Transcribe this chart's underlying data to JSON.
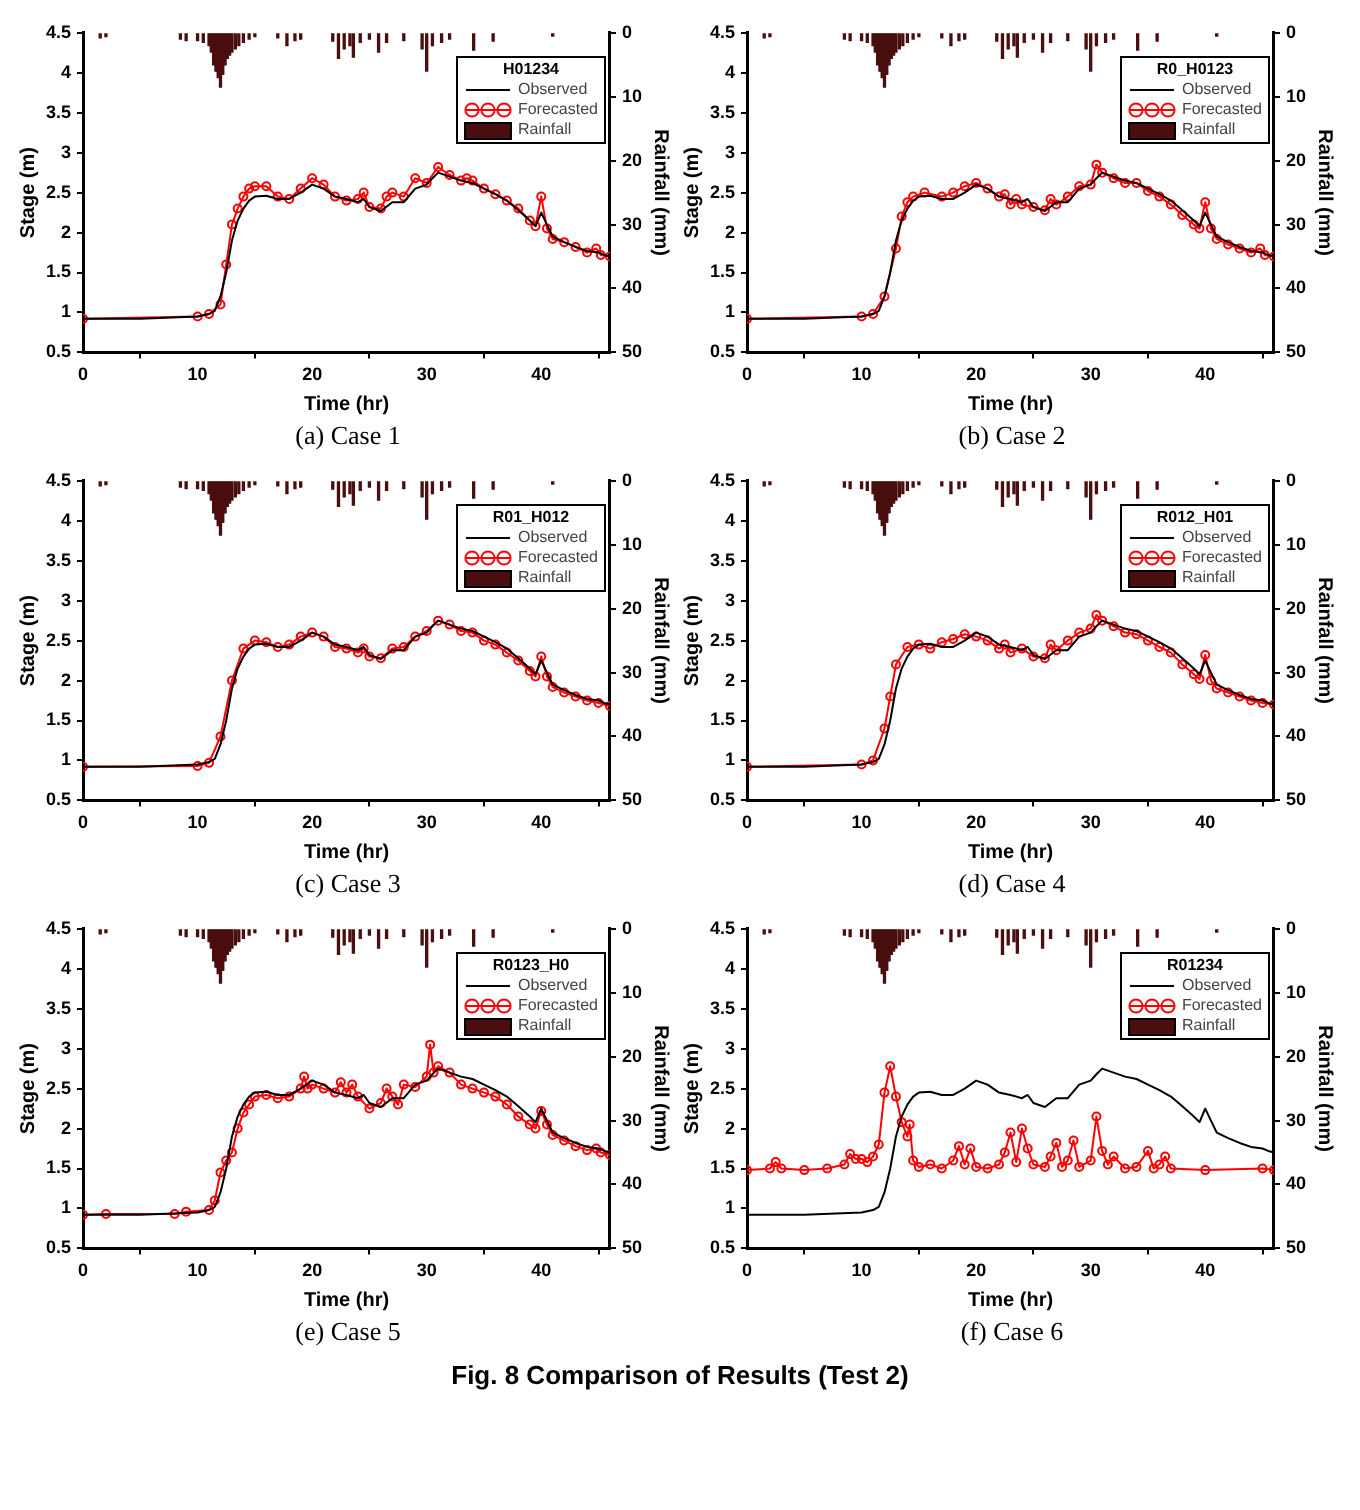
{
  "chart_data": [
    {
      "type": "line",
      "title": "(a) Case 1",
      "legend_title": "H01234",
      "legend": "top right",
      "xlabel": "Time (hr)",
      "ylabel": "Stage (m)",
      "y2label": "Rainfall (mm)",
      "xlim": [
        0,
        46
      ],
      "xticks": [
        0,
        10,
        20,
        30,
        40
      ],
      "ylim": [
        0.5,
        4.5
      ],
      "yticks": [
        0.5,
        1,
        1.5,
        2,
        2.5,
        3,
        3.5,
        4,
        4.5
      ],
      "y2lim": [
        50,
        0
      ],
      "y2ticks": [
        0,
        10,
        20,
        30,
        40,
        50
      ],
      "series": [
        {
          "name": "Observed",
          "color": "#000000",
          "marker": "none",
          "x": [
            0,
            5,
            10,
            11,
            11.5,
            12,
            12.5,
            13,
            13.5,
            14,
            14.5,
            15,
            16,
            17,
            18,
            19,
            20,
            21,
            22,
            23,
            24,
            24.5,
            25,
            26,
            27,
            28,
            29,
            30,
            30.5,
            31,
            32,
            33,
            34,
            35,
            36,
            37,
            38,
            39,
            39.5,
            40,
            40.5,
            41,
            42,
            43,
            44,
            45,
            45.5,
            46
          ],
          "values": [
            0.92,
            0.92,
            0.95,
            0.98,
            1.02,
            1.2,
            1.5,
            1.9,
            2.15,
            2.3,
            2.4,
            2.45,
            2.46,
            2.42,
            2.42,
            2.5,
            2.6,
            2.55,
            2.45,
            2.42,
            2.38,
            2.42,
            2.32,
            2.27,
            2.38,
            2.38,
            2.55,
            2.6,
            2.68,
            2.75,
            2.7,
            2.65,
            2.62,
            2.55,
            2.48,
            2.4,
            2.28,
            2.15,
            2.08,
            2.25,
            2.1,
            1.95,
            1.88,
            1.82,
            1.77,
            1.75,
            1.72,
            1.7
          ]
        },
        {
          "name": "Forecasted",
          "color": "#ff0000",
          "marker": "circle",
          "x": [
            0,
            10,
            11,
            12,
            12.5,
            13,
            13.5,
            14,
            14.5,
            15,
            16,
            17,
            18,
            19,
            20,
            21,
            22,
            23,
            24,
            24.5,
            25,
            26,
            26.5,
            27,
            28,
            29,
            30,
            31,
            32,
            33,
            33.5,
            34,
            35,
            36,
            37,
            38,
            39,
            39.5,
            40,
            40.5,
            41,
            42,
            43,
            44,
            44.8,
            45.2,
            46
          ],
          "values": [
            0.92,
            0.95,
            0.98,
            1.1,
            1.6,
            2.1,
            2.3,
            2.45,
            2.55,
            2.58,
            2.58,
            2.45,
            2.42,
            2.55,
            2.68,
            2.6,
            2.45,
            2.4,
            2.42,
            2.5,
            2.32,
            2.3,
            2.45,
            2.5,
            2.45,
            2.68,
            2.62,
            2.82,
            2.72,
            2.65,
            2.68,
            2.65,
            2.55,
            2.48,
            2.4,
            2.3,
            2.15,
            2.08,
            2.45,
            2.05,
            1.92,
            1.88,
            1.82,
            1.75,
            1.8,
            1.72,
            1.7
          ]
        },
        {
          "name": "Rainfall",
          "type": "bar",
          "axis": "y2",
          "color": "#4a0e0e",
          "x": [
            1.5,
            2,
            8.5,
            9,
            10,
            10.5,
            11,
            11.2,
            11.4,
            11.6,
            11.8,
            12,
            12.2,
            12.4,
            12.6,
            12.8,
            13,
            13.3,
            13.6,
            14,
            14.5,
            15,
            17,
            17.8,
            18.5,
            19,
            21.8,
            22.3,
            22.8,
            23.3,
            23.6,
            24.2,
            25,
            25.8,
            26.5,
            28,
            29.6,
            30,
            30.5,
            31.3,
            32,
            34.1,
            35.8,
            41
          ],
          "values": [
            0.8,
            0.6,
            1,
            1.2,
            1.2,
            1.5,
            2,
            3,
            5,
            6,
            7,
            8.5,
            6.5,
            5,
            4,
            3.5,
            3,
            2.5,
            2,
            1.5,
            1,
            0.6,
            0.8,
            2,
            1.2,
            1,
            1.3,
            4,
            2.5,
            2,
            3.8,
            1.5,
            1,
            3,
            1.5,
            1.2,
            2.5,
            6,
            2,
            1.5,
            1,
            2.7,
            1.3,
            0.5
          ]
        }
      ]
    },
    {
      "type": "line",
      "title": "(b) Case 2",
      "legend_title": "R0_H0123",
      "legend": "top right",
      "xlabel": "Time (hr)",
      "ylabel": "Stage (m)",
      "y2label": "Rainfall (mm)",
      "xlim": [
        0,
        46
      ],
      "xticks": [
        0,
        10,
        20,
        30,
        40
      ],
      "ylim": [
        0.5,
        4.5
      ],
      "yticks": [
        0.5,
        1,
        1.5,
        2,
        2.5,
        3,
        3.5,
        4,
        4.5
      ],
      "y2lim": [
        50,
        0
      ],
      "y2ticks": [
        0,
        10,
        20,
        30,
        40,
        50
      ],
      "series": [
        {
          "name": "Observed",
          "color": "#000000",
          "marker": "none",
          "x": [
            0,
            5,
            10,
            11,
            11.5,
            12,
            12.5,
            13,
            13.5,
            14,
            14.5,
            15,
            16,
            17,
            18,
            19,
            20,
            21,
            22,
            23,
            24,
            24.5,
            25,
            26,
            27,
            28,
            29,
            30,
            30.5,
            31,
            32,
            33,
            34,
            35,
            36,
            37,
            38,
            39,
            39.5,
            40,
            40.5,
            41,
            42,
            43,
            44,
            45,
            45.5,
            46
          ],
          "values": [
            0.92,
            0.92,
            0.95,
            0.98,
            1.02,
            1.2,
            1.5,
            1.9,
            2.15,
            2.3,
            2.4,
            2.45,
            2.46,
            2.42,
            2.42,
            2.5,
            2.6,
            2.55,
            2.45,
            2.42,
            2.38,
            2.42,
            2.32,
            2.27,
            2.38,
            2.38,
            2.55,
            2.6,
            2.68,
            2.75,
            2.7,
            2.65,
            2.62,
            2.55,
            2.48,
            2.4,
            2.28,
            2.15,
            2.08,
            2.25,
            2.1,
            1.95,
            1.88,
            1.82,
            1.77,
            1.75,
            1.72,
            1.7
          ]
        },
        {
          "name": "Forecasted",
          "color": "#ff0000",
          "marker": "circle",
          "x": [
            0,
            10,
            11,
            12,
            13,
            13.5,
            14,
            14.5,
            15.5,
            17,
            18,
            19,
            20,
            21,
            22,
            22.5,
            23,
            23.5,
            24,
            25,
            26,
            26.5,
            27,
            28,
            29,
            30,
            30.5,
            31,
            32,
            33,
            34,
            35,
            36,
            37,
            38,
            39,
            39.5,
            40,
            40.5,
            41,
            42,
            43,
            44,
            44.8,
            45.2,
            46
          ],
          "values": [
            0.92,
            0.95,
            0.98,
            1.2,
            1.8,
            2.2,
            2.38,
            2.45,
            2.5,
            2.45,
            2.5,
            2.58,
            2.62,
            2.55,
            2.45,
            2.48,
            2.35,
            2.42,
            2.35,
            2.32,
            2.28,
            2.42,
            2.35,
            2.45,
            2.58,
            2.6,
            2.85,
            2.75,
            2.68,
            2.62,
            2.62,
            2.52,
            2.45,
            2.35,
            2.22,
            2.1,
            2.05,
            2.38,
            2.05,
            1.92,
            1.85,
            1.8,
            1.75,
            1.8,
            1.72,
            1.7
          ]
        },
        {
          "name": "Rainfall",
          "type": "bar",
          "axis": "y2",
          "color": "#4a0e0e",
          "x": [
            1.5,
            2,
            8.5,
            9,
            10,
            10.5,
            11,
            11.2,
            11.4,
            11.6,
            11.8,
            12,
            12.2,
            12.4,
            12.6,
            12.8,
            13,
            13.3,
            13.6,
            14,
            14.5,
            15,
            17,
            17.8,
            18.5,
            19,
            21.8,
            22.3,
            22.8,
            23.3,
            23.6,
            24.2,
            25,
            25.8,
            26.5,
            28,
            29.6,
            30,
            30.5,
            31.3,
            32,
            34.1,
            35.8,
            41
          ],
          "values": [
            0.8,
            0.6,
            1,
            1.2,
            1.2,
            1.5,
            2,
            3,
            5,
            6,
            7,
            8.5,
            6.5,
            5,
            4,
            3.5,
            3,
            2.5,
            2,
            1.5,
            1,
            0.6,
            0.8,
            2,
            1.2,
            1,
            1.3,
            4,
            2.5,
            2,
            3.8,
            1.5,
            1,
            3,
            1.5,
            1.2,
            2.5,
            6,
            2,
            1.5,
            1,
            2.7,
            1.3,
            0.5
          ]
        }
      ]
    },
    {
      "type": "line",
      "title": "(c) Case 3",
      "legend_title": "R01_H012",
      "legend": "top right",
      "xlabel": "Time (hr)",
      "ylabel": "Stage (m)",
      "y2label": "Rainfall (mm)",
      "xlim": [
        0,
        46
      ],
      "xticks": [
        0,
        10,
        20,
        30,
        40
      ],
      "ylim": [
        0.5,
        4.5
      ],
      "yticks": [
        0.5,
        1,
        1.5,
        2,
        2.5,
        3,
        3.5,
        4,
        4.5
      ],
      "y2lim": [
        50,
        0
      ],
      "y2ticks": [
        0,
        10,
        20,
        30,
        40,
        50
      ],
      "series": [
        {
          "name": "Observed",
          "color": "#000000",
          "marker": "none",
          "x": [
            0,
            5,
            10,
            11,
            11.5,
            12,
            12.5,
            13,
            13.5,
            14,
            14.5,
            15,
            16,
            17,
            18,
            19,
            20,
            21,
            22,
            23,
            24,
            24.5,
            25,
            26,
            27,
            28,
            29,
            30,
            30.5,
            31,
            32,
            33,
            34,
            35,
            36,
            37,
            38,
            39,
            39.5,
            40,
            40.5,
            41,
            42,
            43,
            44,
            45,
            45.5,
            46
          ],
          "values": [
            0.92,
            0.92,
            0.95,
            0.98,
            1.02,
            1.2,
            1.5,
            1.9,
            2.15,
            2.3,
            2.4,
            2.45,
            2.46,
            2.42,
            2.42,
            2.5,
            2.6,
            2.55,
            2.45,
            2.42,
            2.38,
            2.42,
            2.32,
            2.27,
            2.38,
            2.38,
            2.55,
            2.6,
            2.68,
            2.75,
            2.7,
            2.65,
            2.62,
            2.55,
            2.48,
            2.4,
            2.28,
            2.15,
            2.08,
            2.25,
            2.1,
            1.95,
            1.88,
            1.82,
            1.77,
            1.75,
            1.72,
            1.7
          ]
        },
        {
          "name": "Forecasted",
          "color": "#ff0000",
          "marker": "circle",
          "x": [
            0,
            10,
            11,
            12,
            13,
            14,
            15,
            16,
            17,
            18,
            19,
            20,
            21,
            22,
            23,
            24,
            24.5,
            25,
            26,
            27,
            28,
            29,
            30,
            31,
            32,
            33,
            34,
            35,
            36,
            37,
            38,
            39,
            39.5,
            40,
            40.5,
            41,
            42,
            43,
            44,
            45,
            46
          ],
          "values": [
            0.92,
            0.93,
            0.97,
            1.3,
            2.0,
            2.4,
            2.5,
            2.48,
            2.42,
            2.45,
            2.55,
            2.6,
            2.55,
            2.42,
            2.4,
            2.35,
            2.4,
            2.3,
            2.28,
            2.4,
            2.42,
            2.55,
            2.62,
            2.75,
            2.7,
            2.62,
            2.6,
            2.5,
            2.45,
            2.35,
            2.25,
            2.12,
            2.05,
            2.3,
            2.05,
            1.92,
            1.85,
            1.8,
            1.75,
            1.72,
            1.68
          ]
        },
        {
          "name": "Rainfall",
          "type": "bar",
          "axis": "y2",
          "color": "#4a0e0e",
          "x": [
            1.5,
            2,
            8.5,
            9,
            10,
            10.5,
            11,
            11.2,
            11.4,
            11.6,
            11.8,
            12,
            12.2,
            12.4,
            12.6,
            12.8,
            13,
            13.3,
            13.6,
            14,
            14.5,
            15,
            17,
            17.8,
            18.5,
            19,
            21.8,
            22.3,
            22.8,
            23.3,
            23.6,
            24.2,
            25,
            25.8,
            26.5,
            28,
            29.6,
            30,
            30.5,
            31.3,
            32,
            34.1,
            35.8,
            41
          ],
          "values": [
            0.8,
            0.6,
            1,
            1.2,
            1.2,
            1.5,
            2,
            3,
            5,
            6,
            7,
            8.5,
            6.5,
            5,
            4,
            3.5,
            3,
            2.5,
            2,
            1.5,
            1,
            0.6,
            0.8,
            2,
            1.2,
            1,
            1.3,
            4,
            2.5,
            2,
            3.8,
            1.5,
            1,
            3,
            1.5,
            1.2,
            2.5,
            6,
            2,
            1.5,
            1,
            2.7,
            1.3,
            0.5
          ]
        }
      ]
    },
    {
      "type": "line",
      "title": "(d) Case 4",
      "legend_title": "R012_H01",
      "legend": "top right",
      "xlabel": "Time (hr)",
      "ylabel": "Stage (m)",
      "y2label": "Rainfall (mm)",
      "xlim": [
        0,
        46
      ],
      "xticks": [
        0,
        10,
        20,
        30,
        40
      ],
      "ylim": [
        0.5,
        4.5
      ],
      "yticks": [
        0.5,
        1,
        1.5,
        2,
        2.5,
        3,
        3.5,
        4,
        4.5
      ],
      "y2lim": [
        50,
        0
      ],
      "y2ticks": [
        0,
        10,
        20,
        30,
        40,
        50
      ],
      "series": [
        {
          "name": "Observed",
          "color": "#000000",
          "marker": "none",
          "x": [
            0,
            5,
            10,
            11,
            11.5,
            12,
            12.5,
            13,
            13.5,
            14,
            14.5,
            15,
            16,
            17,
            18,
            19,
            20,
            21,
            22,
            23,
            24,
            24.5,
            25,
            26,
            27,
            28,
            29,
            30,
            30.5,
            31,
            32,
            33,
            34,
            35,
            36,
            37,
            38,
            39,
            39.5,
            40,
            40.5,
            41,
            42,
            43,
            44,
            45,
            45.5,
            46
          ],
          "values": [
            0.92,
            0.92,
            0.95,
            0.98,
            1.02,
            1.2,
            1.5,
            1.9,
            2.15,
            2.3,
            2.4,
            2.45,
            2.46,
            2.42,
            2.42,
            2.5,
            2.6,
            2.55,
            2.45,
            2.42,
            2.38,
            2.42,
            2.32,
            2.27,
            2.38,
            2.38,
            2.55,
            2.6,
            2.68,
            2.75,
            2.7,
            2.65,
            2.62,
            2.55,
            2.48,
            2.4,
            2.28,
            2.15,
            2.08,
            2.25,
            2.1,
            1.95,
            1.88,
            1.82,
            1.77,
            1.75,
            1.72,
            1.7
          ]
        },
        {
          "name": "Forecasted",
          "color": "#ff0000",
          "marker": "circle",
          "x": [
            0,
            10,
            11,
            12,
            12.5,
            13,
            14,
            15,
            16,
            17,
            18,
            19,
            20,
            21,
            22,
            22.5,
            23,
            24,
            25,
            26,
            26.5,
            27,
            28,
            29,
            30,
            30.5,
            31,
            32,
            33,
            34,
            35,
            36,
            37,
            38,
            39,
            39.5,
            40,
            40.5,
            41,
            42,
            43,
            44,
            45,
            46
          ],
          "values": [
            0.92,
            0.95,
            1.0,
            1.4,
            1.8,
            2.2,
            2.42,
            2.45,
            2.4,
            2.48,
            2.52,
            2.58,
            2.55,
            2.5,
            2.4,
            2.45,
            2.35,
            2.4,
            2.3,
            2.28,
            2.45,
            2.38,
            2.5,
            2.6,
            2.65,
            2.82,
            2.75,
            2.68,
            2.6,
            2.58,
            2.5,
            2.42,
            2.35,
            2.2,
            2.08,
            2.02,
            2.32,
            2.0,
            1.9,
            1.85,
            1.8,
            1.75,
            1.72,
            1.7
          ]
        },
        {
          "name": "Rainfall",
          "type": "bar",
          "axis": "y2",
          "color": "#4a0e0e",
          "x": [
            1.5,
            2,
            8.5,
            9,
            10,
            10.5,
            11,
            11.2,
            11.4,
            11.6,
            11.8,
            12,
            12.2,
            12.4,
            12.6,
            12.8,
            13,
            13.3,
            13.6,
            14,
            14.5,
            15,
            17,
            17.8,
            18.5,
            19,
            21.8,
            22.3,
            22.8,
            23.3,
            23.6,
            24.2,
            25,
            25.8,
            26.5,
            28,
            29.6,
            30,
            30.5,
            31.3,
            32,
            34.1,
            35.8,
            41
          ],
          "values": [
            0.8,
            0.6,
            1,
            1.2,
            1.2,
            1.5,
            2,
            3,
            5,
            6,
            7,
            8.5,
            6.5,
            5,
            4,
            3.5,
            3,
            2.5,
            2,
            1.5,
            1,
            0.6,
            0.8,
            2,
            1.2,
            1,
            1.3,
            4,
            2.5,
            2,
            3.8,
            1.5,
            1,
            3,
            1.5,
            1.2,
            2.5,
            6,
            2,
            1.5,
            1,
            2.7,
            1.3,
            0.5
          ]
        }
      ]
    },
    {
      "type": "line",
      "title": "(e) Case 5",
      "legend_title": "R0123_H0",
      "legend": "top right",
      "xlabel": "Time (hr)",
      "ylabel": "Stage (m)",
      "y2label": "Rainfall (mm)",
      "xlim": [
        0,
        46
      ],
      "xticks": [
        0,
        10,
        20,
        30,
        40
      ],
      "ylim": [
        0.5,
        4.5
      ],
      "yticks": [
        0.5,
        1,
        1.5,
        2,
        2.5,
        3,
        3.5,
        4,
        4.5
      ],
      "y2lim": [
        50,
        0
      ],
      "y2ticks": [
        0,
        10,
        20,
        30,
        40,
        50
      ],
      "series": [
        {
          "name": "Observed",
          "color": "#000000",
          "marker": "none",
          "x": [
            0,
            5,
            10,
            11,
            11.5,
            12,
            12.5,
            13,
            13.5,
            14,
            14.5,
            15,
            16,
            17,
            18,
            19,
            20,
            21,
            22,
            23,
            24,
            24.5,
            25,
            26,
            27,
            28,
            29,
            30,
            30.5,
            31,
            32,
            33,
            34,
            35,
            36,
            37,
            38,
            39,
            39.5,
            40,
            40.5,
            41,
            42,
            43,
            44,
            45,
            45.5,
            46
          ],
          "values": [
            0.92,
            0.92,
            0.95,
            0.98,
            1.02,
            1.2,
            1.5,
            1.9,
            2.15,
            2.3,
            2.4,
            2.45,
            2.46,
            2.42,
            2.42,
            2.5,
            2.6,
            2.55,
            2.45,
            2.42,
            2.38,
            2.42,
            2.32,
            2.27,
            2.38,
            2.38,
            2.55,
            2.6,
            2.68,
            2.75,
            2.7,
            2.65,
            2.62,
            2.55,
            2.48,
            2.4,
            2.28,
            2.15,
            2.08,
            2.25,
            2.1,
            1.95,
            1.88,
            1.82,
            1.77,
            1.75,
            1.72,
            1.7
          ]
        },
        {
          "name": "Forecasted",
          "color": "#ff0000",
          "marker": "circle",
          "x": [
            0,
            2,
            8,
            9,
            11,
            11.5,
            12,
            12.5,
            13,
            13.5,
            14,
            14.5,
            15,
            16,
            17,
            18,
            19,
            19.3,
            19.6,
            20,
            21,
            22,
            22.5,
            23,
            23.5,
            24,
            25,
            26,
            26.5,
            27,
            27.5,
            28,
            29,
            30,
            30.3,
            30.6,
            31,
            32,
            33,
            34,
            35,
            36,
            37,
            38,
            39,
            39.5,
            40,
            40.5,
            41,
            42,
            43,
            44,
            44.8,
            45.2,
            46
          ],
          "values": [
            0.92,
            0.93,
            0.93,
            0.96,
            0.98,
            1.1,
            1.45,
            1.6,
            1.7,
            2.0,
            2.2,
            2.3,
            2.4,
            2.42,
            2.38,
            2.4,
            2.5,
            2.65,
            2.5,
            2.55,
            2.5,
            2.45,
            2.58,
            2.45,
            2.55,
            2.4,
            2.25,
            2.32,
            2.5,
            2.4,
            2.3,
            2.55,
            2.52,
            2.65,
            3.05,
            2.7,
            2.78,
            2.7,
            2.55,
            2.5,
            2.45,
            2.4,
            2.3,
            2.15,
            2.05,
            2.0,
            2.22,
            2.05,
            1.92,
            1.85,
            1.78,
            1.73,
            1.75,
            1.7,
            1.67
          ]
        },
        {
          "name": "Rainfall",
          "type": "bar",
          "axis": "y2",
          "color": "#4a0e0e",
          "x": [
            1.5,
            2,
            8.5,
            9,
            10,
            10.5,
            11,
            11.2,
            11.4,
            11.6,
            11.8,
            12,
            12.2,
            12.4,
            12.6,
            12.8,
            13,
            13.3,
            13.6,
            14,
            14.5,
            15,
            17,
            17.8,
            18.5,
            19,
            21.8,
            22.3,
            22.8,
            23.3,
            23.6,
            24.2,
            25,
            25.8,
            26.5,
            28,
            29.6,
            30,
            30.5,
            31.3,
            32,
            34.1,
            35.8,
            41
          ],
          "values": [
            0.8,
            0.6,
            1,
            1.2,
            1.2,
            1.5,
            2,
            3,
            5,
            6,
            7,
            8.5,
            6.5,
            5,
            4,
            3.5,
            3,
            2.5,
            2,
            1.5,
            1,
            0.6,
            0.8,
            2,
            1.2,
            1,
            1.3,
            4,
            2.5,
            2,
            3.8,
            1.5,
            1,
            3,
            1.5,
            1.2,
            2.5,
            6,
            2,
            1.5,
            1,
            2.7,
            1.3,
            0.5
          ]
        }
      ]
    },
    {
      "type": "line",
      "title": "(f) Case 6",
      "legend_title": "R01234",
      "legend": "top right",
      "xlabel": "Time (hr)",
      "ylabel": "Stage (m)",
      "y2label": "Rainfall (mm)",
      "xlim": [
        0,
        46
      ],
      "xticks": [
        0,
        10,
        20,
        30,
        40
      ],
      "ylim": [
        0.5,
        4.5
      ],
      "yticks": [
        0.5,
        1,
        1.5,
        2,
        2.5,
        3,
        3.5,
        4,
        4.5
      ],
      "y2lim": [
        50,
        0
      ],
      "y2ticks": [
        0,
        10,
        20,
        30,
        40,
        50
      ],
      "annotations": [
        "Fig. 8 Comparison of Results (Test 2)"
      ],
      "series": [
        {
          "name": "Observed",
          "color": "#000000",
          "marker": "none",
          "x": [
            0,
            5,
            10,
            11,
            11.5,
            12,
            12.5,
            13,
            13.5,
            14,
            14.5,
            15,
            16,
            17,
            18,
            19,
            20,
            21,
            22,
            23,
            24,
            24.5,
            25,
            26,
            27,
            28,
            29,
            30,
            30.5,
            31,
            32,
            33,
            34,
            35,
            36,
            37,
            38,
            39,
            39.5,
            40,
            40.5,
            41,
            42,
            43,
            44,
            45,
            45.5,
            46
          ],
          "values": [
            0.92,
            0.92,
            0.95,
            0.98,
            1.02,
            1.2,
            1.5,
            1.9,
            2.15,
            2.3,
            2.4,
            2.45,
            2.46,
            2.42,
            2.42,
            2.5,
            2.6,
            2.55,
            2.45,
            2.42,
            2.38,
            2.42,
            2.32,
            2.27,
            2.38,
            2.38,
            2.55,
            2.6,
            2.68,
            2.75,
            2.7,
            2.65,
            2.62,
            2.55,
            2.48,
            2.4,
            2.28,
            2.15,
            2.08,
            2.25,
            2.1,
            1.95,
            1.88,
            1.82,
            1.77,
            1.75,
            1.72,
            1.7
          ]
        },
        {
          "name": "Forecasted",
          "color": "#ff0000",
          "marker": "circle",
          "x": [
            0,
            2,
            2.5,
            3,
            5,
            7,
            8.5,
            9,
            9.5,
            10,
            10.5,
            11,
            11.5,
            12,
            12.5,
            13,
            13.5,
            14,
            14.2,
            14.5,
            15,
            16,
            17,
            18,
            18.5,
            19,
            19.5,
            20,
            21,
            22,
            22.5,
            23,
            23.5,
            24,
            24.5,
            25,
            26,
            26.5,
            27,
            27.5,
            28,
            28.5,
            29,
            30,
            30.5,
            31,
            31.5,
            32,
            33,
            34,
            35,
            35.5,
            36,
            36.5,
            37,
            40,
            45,
            46
          ],
          "values": [
            1.48,
            1.5,
            1.58,
            1.5,
            1.48,
            1.5,
            1.55,
            1.68,
            1.62,
            1.62,
            1.58,
            1.65,
            1.8,
            2.45,
            2.78,
            2.4,
            2.08,
            1.9,
            2.05,
            1.6,
            1.52,
            1.55,
            1.5,
            1.6,
            1.78,
            1.55,
            1.75,
            1.52,
            1.5,
            1.55,
            1.7,
            1.95,
            1.58,
            2.0,
            1.75,
            1.55,
            1.52,
            1.65,
            1.82,
            1.52,
            1.6,
            1.85,
            1.52,
            1.6,
            2.15,
            1.72,
            1.55,
            1.65,
            1.5,
            1.52,
            1.72,
            1.5,
            1.55,
            1.65,
            1.5,
            1.48,
            1.5,
            1.48
          ]
        },
        {
          "name": "Rainfall",
          "type": "bar",
          "axis": "y2",
          "color": "#4a0e0e",
          "x": [
            1.5,
            2,
            8.5,
            9,
            10,
            10.5,
            11,
            11.2,
            11.4,
            11.6,
            11.8,
            12,
            12.2,
            12.4,
            12.6,
            12.8,
            13,
            13.3,
            13.6,
            14,
            14.5,
            15,
            17,
            17.8,
            18.5,
            19,
            21.8,
            22.3,
            22.8,
            23.3,
            23.6,
            24.2,
            25,
            25.8,
            26.5,
            28,
            29.6,
            30,
            30.5,
            31.3,
            32,
            34.1,
            35.8,
            41
          ],
          "values": [
            0.8,
            0.6,
            1,
            1.2,
            1.2,
            1.5,
            2,
            3,
            5,
            6,
            7,
            8.5,
            6.5,
            5,
            4,
            3.5,
            3,
            2.5,
            2,
            1.5,
            1,
            0.6,
            0.8,
            2,
            1.2,
            1,
            1.3,
            4,
            2.5,
            2,
            3.8,
            1.5,
            1,
            3,
            1.5,
            1.2,
            2.5,
            6,
            2,
            1.5,
            1,
            2.7,
            1.3,
            0.5
          ]
        }
      ]
    }
  ]
}
